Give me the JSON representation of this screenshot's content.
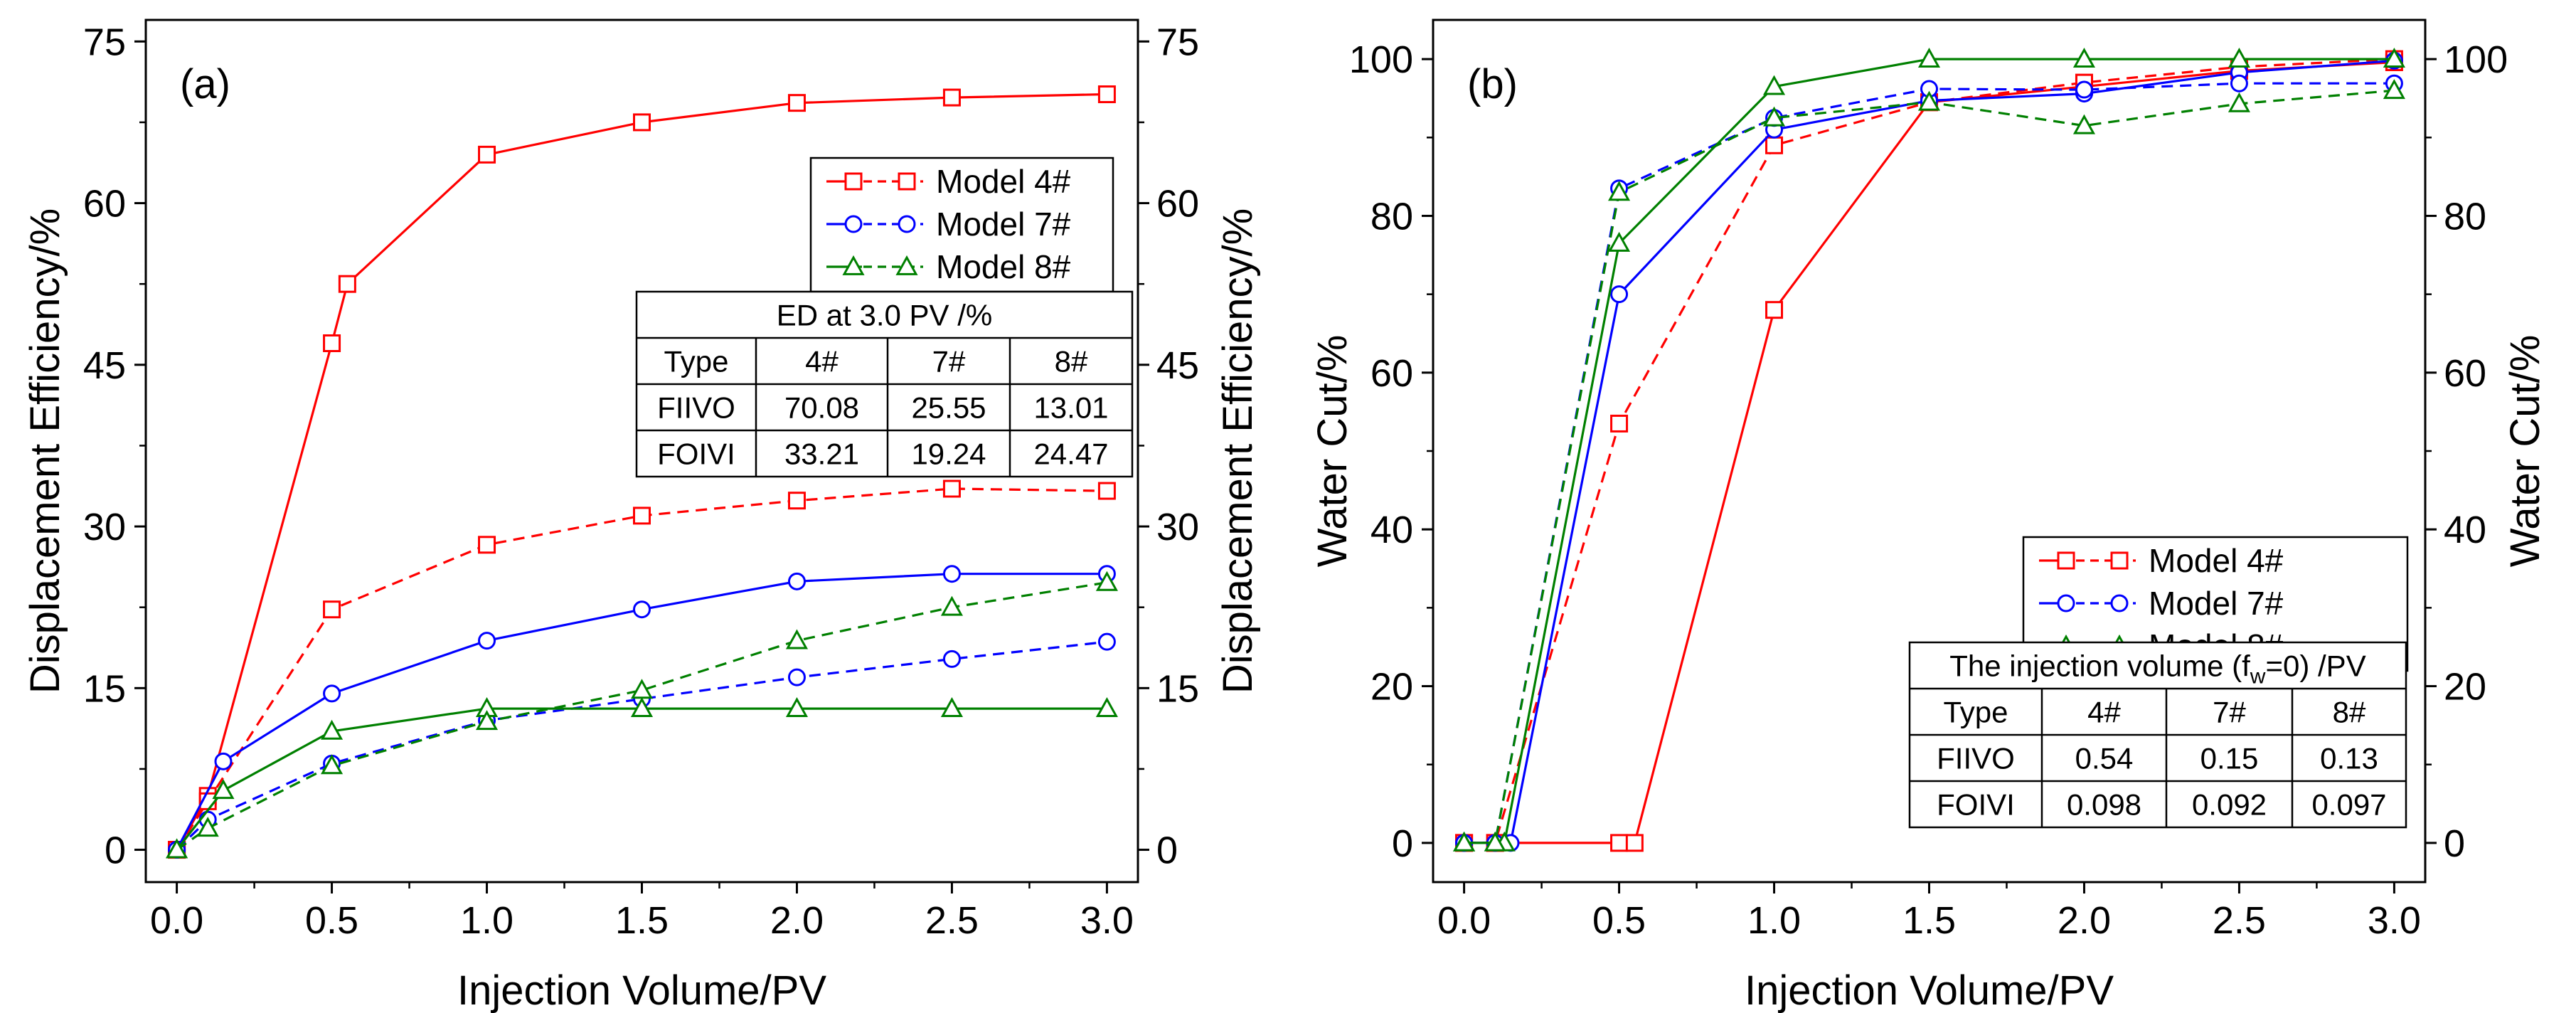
{
  "chart_data": [
    {
      "panel": "(a)",
      "type": "line",
      "xlabel": "Injection Volume/PV",
      "ylabel": "Displacement Efficiency/%",
      "ylabel_right": "Displacement Efficiency/%",
      "xlim": [
        -0.1,
        3.1
      ],
      "ylim": [
        -3,
        77
      ],
      "xticks": [
        "0.0",
        "0.5",
        "1.0",
        "1.5",
        "2.0",
        "2.5",
        "3.0"
      ],
      "xtick_values": [
        0,
        0.5,
        1,
        1.5,
        2,
        2.5,
        3
      ],
      "yticks": [
        "0",
        "15",
        "30",
        "45",
        "60",
        "75"
      ],
      "ytick_values": [
        0,
        15,
        30,
        45,
        60,
        75
      ],
      "legend": {
        "placement": "top-right",
        "entries": [
          {
            "label": "Model 4#",
            "color": "#ff0000",
            "marker": "square"
          },
          {
            "label": "Model 7#",
            "color": "#0000ff",
            "marker": "circle"
          },
          {
            "label": "Model 8#",
            "color": "#008000",
            "marker": "triangle"
          }
        ]
      },
      "table": {
        "title": "ED at 3.0 PV /%",
        "header": [
          "Type",
          "4#",
          "7#",
          "8#"
        ],
        "rows": [
          [
            "FIIVO",
            "70.08",
            "25.55",
            "13.01"
          ],
          [
            "FOIVI",
            "33.21",
            "19.24",
            "24.47"
          ]
        ]
      },
      "series": [
        {
          "model": "4#",
          "style": "solid",
          "color": "#ff0000",
          "marker": "square",
          "x": [
            0,
            0.1,
            0.5,
            0.55,
            1.0,
            1.5,
            2.0,
            2.5,
            3.0
          ],
          "y": [
            0,
            5,
            47,
            52.5,
            64.5,
            67.5,
            69.3,
            69.8,
            70.1
          ]
        },
        {
          "model": "4#",
          "style": "dashed",
          "color": "#ff0000",
          "marker": "square",
          "x": [
            0,
            0.1,
            0.5,
            1.0,
            1.5,
            2.0,
            2.5,
            3.0
          ],
          "y": [
            0,
            4.5,
            22.3,
            28.3,
            31,
            32.4,
            33.5,
            33.3
          ]
        },
        {
          "model": "7#",
          "style": "solid",
          "color": "#0000ff",
          "marker": "circle",
          "x": [
            0,
            0.15,
            0.5,
            1.0,
            1.5,
            2.0,
            2.5,
            3.0
          ],
          "y": [
            0,
            8.2,
            14.5,
            19.4,
            22.3,
            24.9,
            25.6,
            25.6
          ]
        },
        {
          "model": "7#",
          "style": "dashed",
          "color": "#0000ff",
          "marker": "circle",
          "x": [
            0,
            0.1,
            0.5,
            1.0,
            1.5,
            2.0,
            2.5,
            3.0
          ],
          "y": [
            0,
            2.8,
            8,
            12,
            14,
            16,
            17.7,
            19.3
          ]
        },
        {
          "model": "8#",
          "style": "solid",
          "color": "#008000",
          "marker": "triangle",
          "x": [
            0,
            0.15,
            0.5,
            1.0,
            1.5,
            2.0,
            2.5,
            3.0
          ],
          "y": [
            0,
            5.5,
            11,
            13.1,
            13.1,
            13.1,
            13.1,
            13.1
          ]
        },
        {
          "model": "8#",
          "style": "dashed",
          "color": "#008000",
          "marker": "triangle",
          "x": [
            0,
            0.1,
            0.5,
            1.0,
            1.5,
            2.0,
            2.5,
            3.0
          ],
          "y": [
            0,
            2,
            7.8,
            11.9,
            14.8,
            19.4,
            22.5,
            24.8
          ]
        }
      ]
    },
    {
      "panel": "(b)",
      "type": "line",
      "xlabel": "Injection Volume/PV",
      "ylabel": "Water Cut/%",
      "ylabel_right": "Water Cut/%",
      "xlim": [
        -0.1,
        3.1
      ],
      "ylim": [
        -5,
        105
      ],
      "xticks": [
        "0.0",
        "0.5",
        "1.0",
        "1.5",
        "2.0",
        "2.5",
        "3.0"
      ],
      "xtick_values": [
        0,
        0.5,
        1,
        1.5,
        2,
        2.5,
        3
      ],
      "yticks": [
        "0",
        "20",
        "40",
        "60",
        "80",
        "100"
      ],
      "ytick_values": [
        0,
        20,
        40,
        60,
        80,
        100
      ],
      "legend": {
        "placement": "bottom-right",
        "entries": [
          {
            "label": "Model 4#",
            "color": "#ff0000",
            "marker": "square"
          },
          {
            "label": "Model 7#",
            "color": "#0000ff",
            "marker": "circle"
          },
          {
            "label": "Model 8#",
            "color": "#008000",
            "marker": "triangle"
          }
        ]
      },
      "table": {
        "title_main": "The injection volume (f",
        "title_sub": "w",
        "title_tail": "=0) /PV",
        "header": [
          "Type",
          "4#",
          "7#",
          "8#"
        ],
        "rows": [
          [
            "FIIVO",
            "0.54",
            "0.15",
            "0.13"
          ],
          [
            "FOIVI",
            "0.098",
            "0.092",
            "0.097"
          ]
        ]
      },
      "series": [
        {
          "model": "4#",
          "style": "solid",
          "color": "#ff0000",
          "marker": "square",
          "x": [
            0,
            0.1,
            0.5,
            0.55,
            1.0,
            1.5,
            2.0,
            2.5,
            3.0
          ],
          "y": [
            0,
            0,
            0,
            0,
            68,
            94.5,
            96.5,
            98.5,
            99.6
          ]
        },
        {
          "model": "4#",
          "style": "dashed",
          "color": "#ff0000",
          "marker": "square",
          "x": [
            0,
            0.1,
            0.5,
            1.0,
            1.5,
            2.0,
            2.5,
            3.0
          ],
          "y": [
            0,
            0,
            53.5,
            89,
            94.5,
            97,
            99,
            100
          ]
        },
        {
          "model": "7#",
          "style": "solid",
          "color": "#0000ff",
          "marker": "circle",
          "x": [
            0,
            0.15,
            0.5,
            1.0,
            1.5,
            2.0,
            2.5,
            3.0
          ],
          "y": [
            0,
            0,
            70,
            91,
            94.7,
            95.6,
            98.3,
            99.8
          ]
        },
        {
          "model": "7#",
          "style": "dashed",
          "color": "#0000ff",
          "marker": "circle",
          "x": [
            0,
            0.1,
            0.5,
            1.0,
            1.5,
            2.0,
            2.5,
            3.0
          ],
          "y": [
            0,
            0,
            83.5,
            92.5,
            96.2,
            96.1,
            96.9,
            96.9
          ]
        },
        {
          "model": "8#",
          "style": "solid",
          "color": "#008000",
          "marker": "triangle",
          "x": [
            0,
            0.13,
            0.5,
            1.0,
            1.5,
            2.0,
            2.5,
            3.0
          ],
          "y": [
            0,
            0,
            76.5,
            96.5,
            100,
            100,
            100,
            100
          ]
        },
        {
          "model": "8#",
          "style": "dashed",
          "color": "#008000",
          "marker": "triangle",
          "x": [
            0,
            0.1,
            0.5,
            1.0,
            1.5,
            2.0,
            2.5,
            3.0
          ],
          "y": [
            0,
            0,
            83,
            92.5,
            94.5,
            91.5,
            94.3,
            96
          ]
        }
      ]
    }
  ]
}
